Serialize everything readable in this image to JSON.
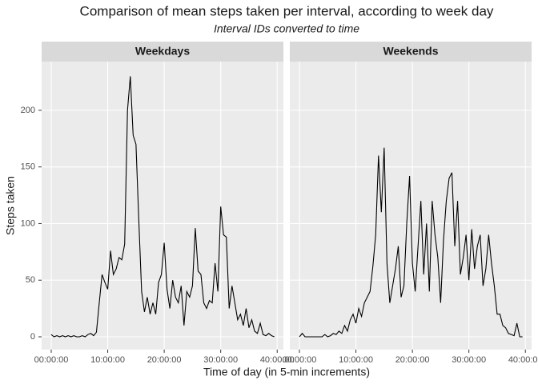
{
  "chart_data": {
    "type": "line",
    "title": "Comparison of mean steps taken per interval, according to week day",
    "subtitle": "Interval IDs converted to time",
    "x_label": "Time of day (in 5-min increments)",
    "y_label": "Steps taken",
    "color": "#000000",
    "grid": true,
    "xlim": [
      -1.7,
      41.1
    ],
    "ylim": [
      -11.3,
      243
    ],
    "xticks": [
      {
        "value": 0,
        "label": "00:00:00"
      },
      {
        "value": 10,
        "label": "10:00:00"
      },
      {
        "value": 20,
        "label": "20:00:00"
      },
      {
        "value": 30,
        "label": "30:00:00"
      },
      {
        "value": 40,
        "label": "40:00:00"
      }
    ],
    "yticks": [
      0,
      50,
      100,
      150,
      200
    ],
    "x": [
      0,
      0.5,
      1,
      1.5,
      2,
      2.5,
      3,
      3.5,
      4,
      4.5,
      5,
      5.5,
      6,
      6.5,
      7,
      7.5,
      8,
      8.5,
      9,
      9.5,
      10,
      10.5,
      11,
      11.5,
      12,
      12.5,
      13,
      13.5,
      14,
      14.5,
      15,
      15.5,
      16,
      16.5,
      17,
      17.5,
      18,
      18.5,
      19,
      19.5,
      20,
      20.5,
      21,
      21.5,
      22,
      22.5,
      23,
      23.5,
      24,
      24.5,
      25,
      25.5,
      26,
      26.5,
      27,
      27.5,
      28,
      28.5,
      29,
      29.5,
      30,
      30.5,
      31,
      31.5,
      32,
      32.5,
      33,
      33.5,
      34,
      34.5,
      35,
      35.5,
      36,
      36.5,
      37,
      37.5,
      38,
      38.5,
      39,
      39.5
    ],
    "facets": [
      {
        "name": "Weekdays",
        "values": [
          2,
          0,
          1,
          0,
          1,
          0,
          1,
          0,
          1,
          0,
          0,
          1,
          0,
          2,
          3,
          1,
          4,
          30,
          55,
          48,
          42,
          76,
          55,
          60,
          70,
          68,
          82,
          200,
          230,
          178,
          170,
          103,
          40,
          22,
          35,
          20,
          30,
          20,
          48,
          55,
          83,
          42,
          25,
          50,
          35,
          30,
          45,
          10,
          40,
          35,
          45,
          96,
          58,
          55,
          30,
          25,
          32,
          30,
          65,
          40,
          115,
          90,
          88,
          25,
          45,
          30,
          15,
          20,
          10,
          25,
          8,
          15,
          5,
          3,
          12,
          2,
          1,
          3,
          1,
          0
        ]
      },
      {
        "name": "Weekends",
        "values": [
          0,
          3,
          0,
          0,
          0,
          0,
          0,
          0,
          0,
          2,
          0,
          1,
          3,
          2,
          5,
          3,
          10,
          5,
          15,
          20,
          12,
          25,
          18,
          30,
          35,
          40,
          62,
          90,
          160,
          110,
          167,
          65,
          30,
          45,
          60,
          80,
          35,
          45,
          100,
          142,
          65,
          40,
          80,
          120,
          55,
          100,
          40,
          120,
          90,
          70,
          30,
          85,
          120,
          140,
          145,
          80,
          120,
          55,
          70,
          90,
          50,
          95,
          60,
          80,
          90,
          45,
          60,
          90,
          65,
          45,
          20,
          20,
          10,
          8,
          3,
          2,
          1,
          12,
          0,
          0
        ]
      }
    ]
  }
}
